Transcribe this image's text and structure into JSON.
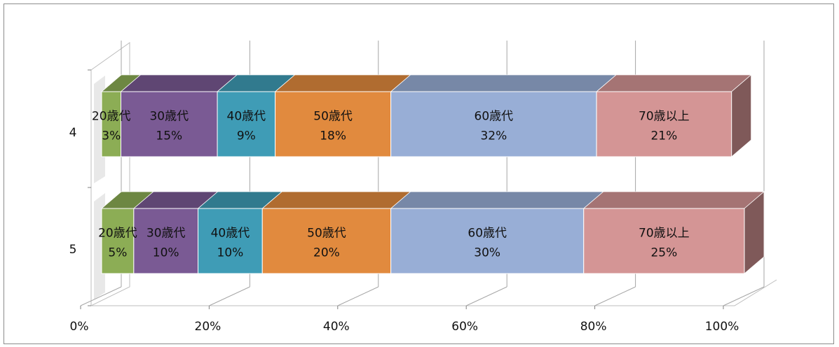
{
  "chart_data": {
    "type": "bar",
    "orientation": "horizontal",
    "stacked": "percent",
    "style": "3d",
    "categories": [
      "4",
      "5"
    ],
    "series": [
      {
        "name": "20歳代",
        "values": [
          3,
          5
        ],
        "color": "#8cad55"
      },
      {
        "name": "30歳代",
        "values": [
          15,
          10
        ],
        "color": "#7a5a94"
      },
      {
        "name": "40歳代",
        "values": [
          9,
          10
        ],
        "color": "#3f9cb6"
      },
      {
        "name": "50歳代",
        "values": [
          18,
          20
        ],
        "color": "#e18a3e"
      },
      {
        "name": "60歳代",
        "values": [
          32,
          30
        ],
        "color": "#98aed6"
      },
      {
        "name": "70歳以上",
        "values": [
          21,
          25
        ],
        "color": "#d49595"
      }
    ],
    "data_labels": [
      [
        "3%",
        "15%",
        "9%",
        "18%",
        "32%",
        "21%"
      ],
      [
        "5%",
        "10%",
        "10%",
        "20%",
        "30%",
        "25%"
      ]
    ],
    "xticks": [
      "0%",
      "20%",
      "40%",
      "60%",
      "80%",
      "100%"
    ],
    "xlim": [
      0,
      100
    ],
    "grid": true,
    "legend": "none"
  }
}
